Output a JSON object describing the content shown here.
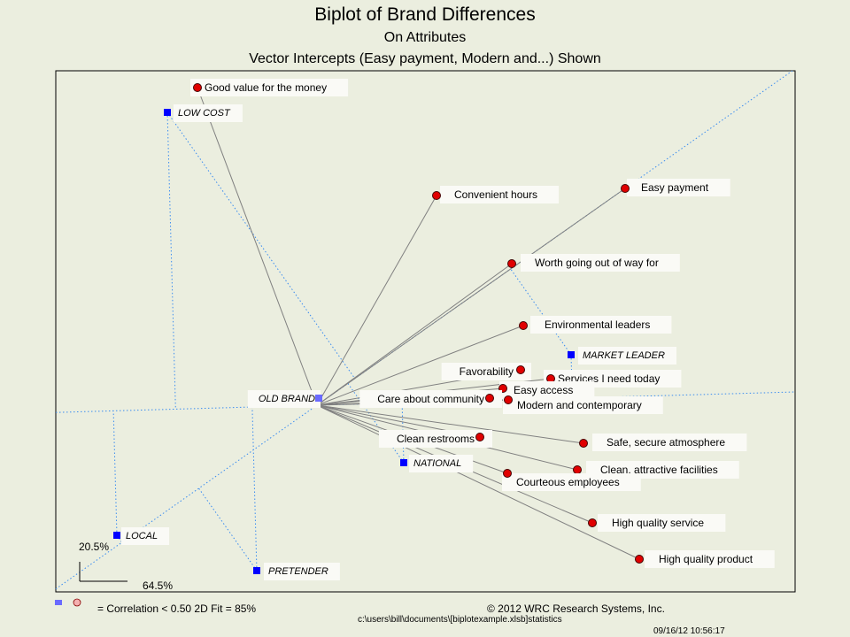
{
  "chart_data": {
    "type": "scatter",
    "title": "Biplot of Brand Differences",
    "subtitle": "On Attributes",
    "subtitle2": "Vector Intercepts (Easy payment, Modern and...) Shown",
    "xlabel": "",
    "ylabel": "",
    "xlim": [
      -2.95,
      5.4
    ],
    "ylim": [
      -2.11,
      3.78
    ],
    "attributes": [
      {
        "name": "Good value for the money",
        "x": -1.35,
        "y": 3.59
      },
      {
        "name": "Convenient  hours",
        "x": 1.35,
        "y": 2.37
      },
      {
        "name": "Easy payment",
        "x": 3.48,
        "y": 2.45
      },
      {
        "name": "Worth going out of way for",
        "x": 2.2,
        "y": 1.6
      },
      {
        "name": "Environmental  leaders",
        "x": 2.33,
        "y": 0.9
      },
      {
        "name": "Favorability",
        "x": 2.3,
        "y": 0.4
      },
      {
        "name": "Services  I need today",
        "x": 2.64,
        "y": 0.3
      },
      {
        "name": "Easy access",
        "x": 2.1,
        "y": 0.19
      },
      {
        "name": "Care  about  community",
        "x": 1.95,
        "y": 0.08
      },
      {
        "name": "Modern  and contemporary",
        "x": 2.16,
        "y": 0.06
      },
      {
        "name": "Clean  restrooms",
        "x": 1.84,
        "y": -0.36
      },
      {
        "name": "Safe, secure atmosphere",
        "x": 3.01,
        "y": -0.43
      },
      {
        "name": "Clean,  attractive facilities",
        "x": 2.94,
        "y": -0.73
      },
      {
        "name": "Courteous  employees",
        "x": 2.15,
        "y": -0.77
      },
      {
        "name": "High quality service",
        "x": 3.11,
        "y": -1.33
      },
      {
        "name": "High quality product",
        "x": 3.64,
        "y": -1.74
      }
    ],
    "brands": [
      {
        "name": "LOW COST",
        "x": -1.69,
        "y": 3.31
      },
      {
        "name": "OLD BRAND",
        "x": 0.02,
        "y": 0.08
      },
      {
        "name": "MARKET LEADER",
        "x": 2.87,
        "y": 0.57
      },
      {
        "name": "NATIONAL",
        "x": 0.98,
        "y": -0.65
      },
      {
        "name": "LOCAL",
        "x": -2.26,
        "y": -1.47
      },
      {
        "name": "PRETENDER",
        "x": -0.68,
        "y": -1.87
      }
    ],
    "vector_intercepts": [
      "Easy payment",
      "Modern  and contemporary"
    ],
    "scale": {
      "vertical": "20.5%",
      "horizontal": "64.5%"
    },
    "colors": {
      "attribute": "#e00000",
      "brand": "#0000ff",
      "vector": "#808080",
      "intercept": "#3a8cf0",
      "background": "#ebeedf"
    }
  },
  "footer": {
    "legend": "= Correlation  < 0.50  2D Fit = 85%",
    "copyright": "© 2012 WRC Research Systems, Inc.",
    "path": "c:\\users\\bill\\documents\\[biplotexample.xlsb]statistics",
    "timestamp": "09/16/12 10:56:17"
  }
}
